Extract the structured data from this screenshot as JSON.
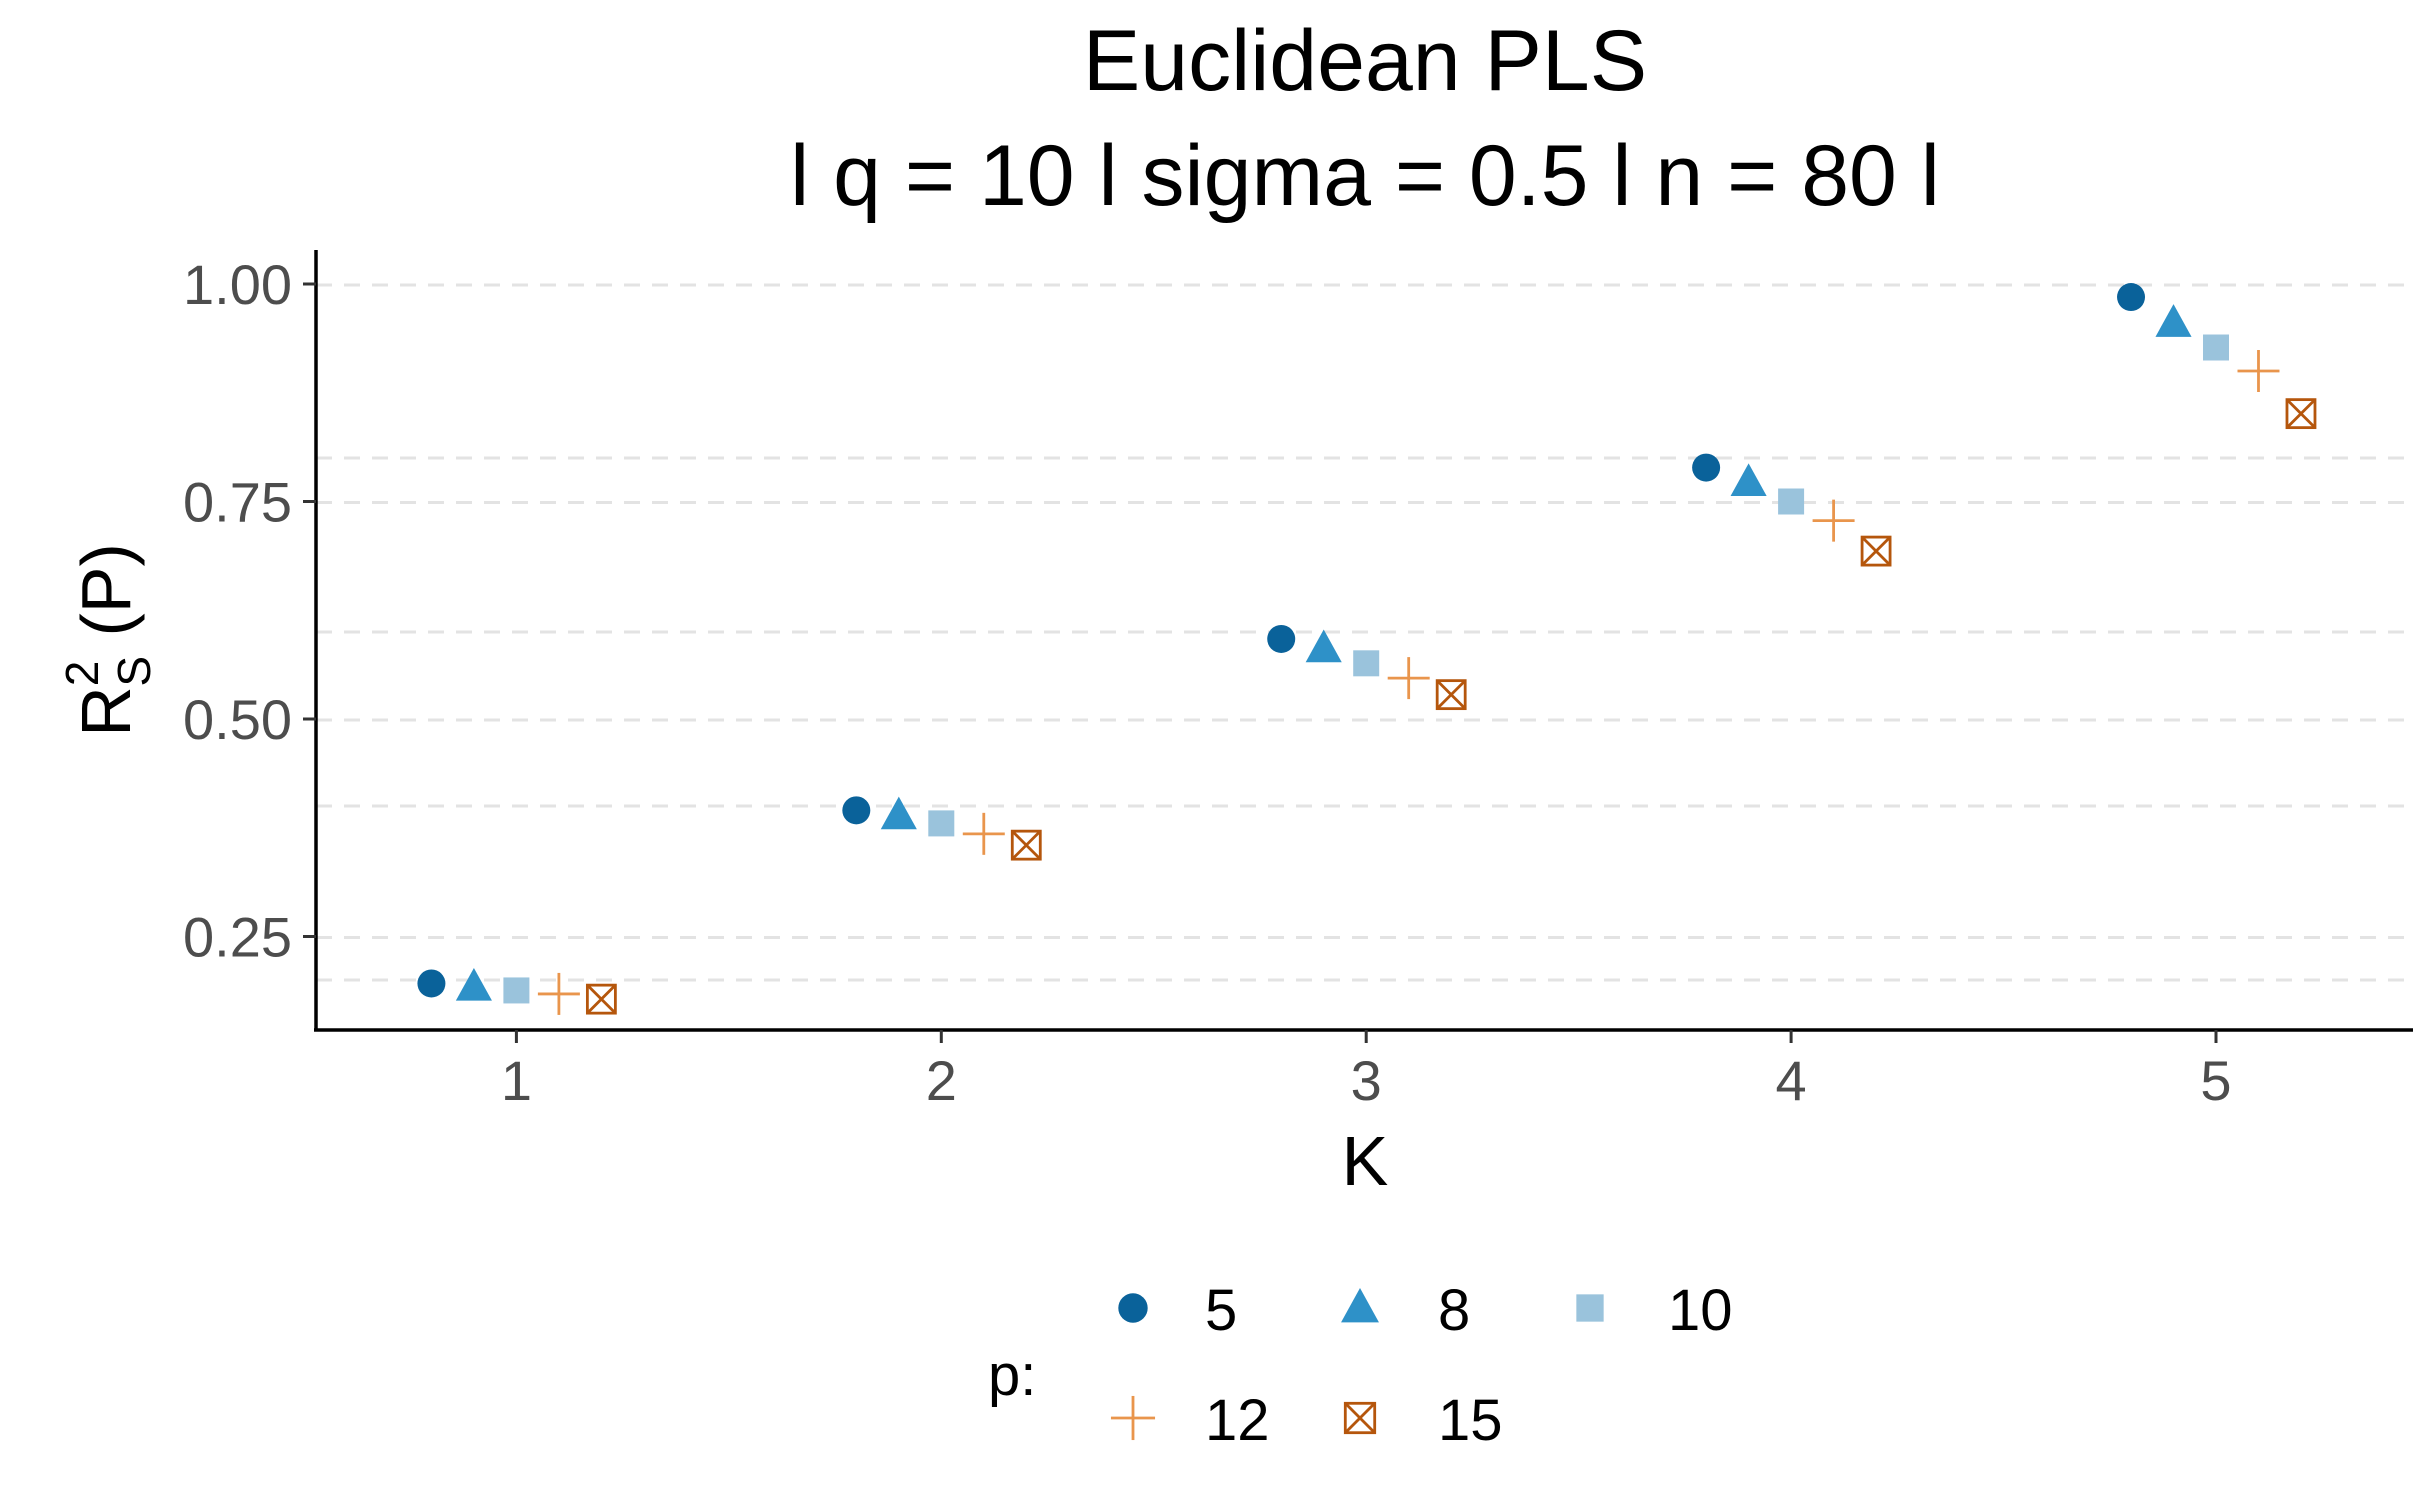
{
  "chart_data": {
    "type": "scatter",
    "title": "Euclidean PLS",
    "subtitle": "l q = 10 l sigma = 0.5 l n = 80 l",
    "xlabel": "K",
    "ylabel": {
      "base": "R",
      "superscript": "2",
      "subscript": "S",
      "suffix": " (P)"
    },
    "categories": [
      "1",
      "2",
      "3",
      "4",
      "5"
    ],
    "ylim": [
      0.14,
      1.04
    ],
    "yticks": [
      "0.25",
      "0.50",
      "0.75",
      "1.00"
    ],
    "grid": "horizontal dashed",
    "legend": {
      "title": "p:",
      "position": "bottom"
    },
    "series": [
      {
        "name": "5",
        "shape": "circle",
        "color": "#0a629a",
        "values": [
          0.196,
          0.395,
          0.592,
          0.789,
          0.985
        ]
      },
      {
        "name": "8",
        "shape": "triangle",
        "color": "#2e91c8",
        "values": [
          0.192,
          0.389,
          0.581,
          0.772,
          0.955
        ]
      },
      {
        "name": "10",
        "shape": "square",
        "color": "#9ac3dc",
        "values": [
          0.188,
          0.38,
          0.564,
          0.75,
          0.927
        ]
      },
      {
        "name": "12",
        "shape": "plus",
        "color": "#e9954c",
        "values": [
          0.184,
          0.368,
          0.547,
          0.728,
          0.9
        ]
      },
      {
        "name": "15",
        "shape": "boxx",
        "color": "#b5560c",
        "values": [
          0.178,
          0.355,
          0.528,
          0.693,
          0.851
        ]
      }
    ]
  }
}
